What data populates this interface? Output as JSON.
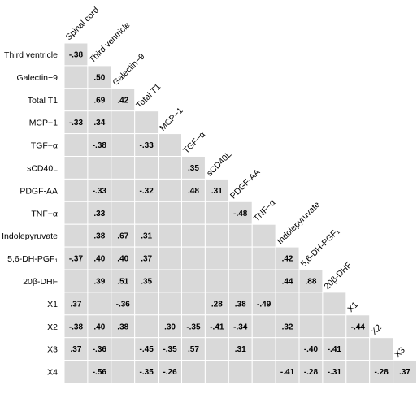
{
  "chart_data": {
    "type": "heatmap",
    "variables": [
      "Spinal cord",
      "Third ventricle",
      "Galectin−9",
      "Total T1",
      "MCP−1",
      "TGF−α",
      "sCD40L",
      "PDGF-AA",
      "TNF−α",
      "Indolepyruvate",
      "5,6-DH-PGF₁",
      "20β-DHF",
      "X1",
      "X2",
      "X3",
      "X4"
    ],
    "correlations": [
      [
        -0.38,
        null,
        null,
        null,
        null,
        null,
        null,
        null,
        null,
        null,
        null,
        null,
        null,
        null,
        null
      ],
      [
        null,
        0.5,
        null,
        null,
        null,
        null,
        null,
        null,
        null,
        null,
        null,
        null,
        null,
        null,
        null
      ],
      [
        null,
        0.69,
        0.42,
        null,
        null,
        null,
        null,
        null,
        null,
        null,
        null,
        null,
        null,
        null,
        null
      ],
      [
        -0.33,
        0.34,
        null,
        null,
        null,
        null,
        null,
        null,
        null,
        null,
        null,
        null,
        null,
        null,
        null
      ],
      [
        null,
        -0.38,
        null,
        -0.33,
        null,
        null,
        null,
        null,
        null,
        null,
        null,
        null,
        null,
        null,
        null
      ],
      [
        null,
        null,
        null,
        null,
        null,
        0.35,
        null,
        null,
        null,
        null,
        null,
        null,
        null,
        null,
        null
      ],
      [
        null,
        -0.33,
        null,
        -0.32,
        null,
        0.48,
        0.31,
        null,
        null,
        null,
        null,
        null,
        null,
        null,
        null
      ],
      [
        null,
        0.33,
        null,
        null,
        null,
        null,
        null,
        -0.48,
        null,
        null,
        null,
        null,
        null,
        null,
        null
      ],
      [
        null,
        0.38,
        0.67,
        0.31,
        null,
        null,
        null,
        null,
        null,
        null,
        null,
        null,
        null,
        null,
        null
      ],
      [
        -0.37,
        0.4,
        0.4,
        0.37,
        null,
        null,
        null,
        null,
        null,
        0.42,
        null,
        null,
        null,
        null,
        null
      ],
      [
        null,
        0.39,
        0.51,
        0.35,
        null,
        null,
        null,
        null,
        null,
        0.44,
        0.88,
        null,
        null,
        null,
        null
      ],
      [
        0.37,
        null,
        -0.36,
        null,
        null,
        null,
        0.28,
        0.38,
        -0.49,
        null,
        null,
        null,
        null,
        null,
        null
      ],
      [
        -0.38,
        0.4,
        0.38,
        null,
        0.3,
        -0.35,
        -0.41,
        -0.34,
        null,
        0.32,
        null,
        null,
        -0.44,
        null,
        null
      ],
      [
        0.37,
        -0.36,
        null,
        -0.45,
        -0.35,
        0.57,
        null,
        0.31,
        null,
        null,
        -0.4,
        -0.41,
        null,
        null,
        null
      ],
      [
        null,
        -0.56,
        null,
        -0.35,
        -0.26,
        null,
        null,
        null,
        null,
        -0.41,
        -0.28,
        -0.31,
        null,
        -0.28,
        0.37
      ]
    ],
    "colors": {
      "cell_fill": "#d9d9d9",
      "cell_border": "#ffffff",
      "text": "#000000"
    }
  }
}
